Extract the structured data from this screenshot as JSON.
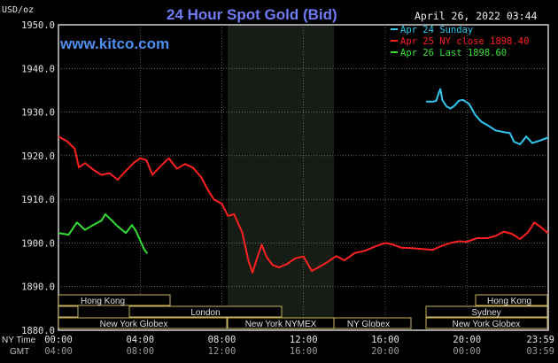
{
  "header": {
    "unit": "USD/oz",
    "title": "24 Hour Spot Gold (Bid)",
    "timestamp": "April 26, 2022 03:44",
    "website": "www.kitco.com"
  },
  "legend": [
    {
      "label": "Apr 24 Sunday",
      "color": "#2fc8f0"
    },
    {
      "label": "Apr 25 NY close 1898.40",
      "color": "#ff2020"
    },
    {
      "label": "Apr 26 Last 1898.60",
      "color": "#30e030"
    }
  ],
  "axis": {
    "y_ticks": [
      "1950.0",
      "1940.0",
      "1930.0",
      "1920.0",
      "1910.0",
      "1900.0",
      "1890.0",
      "1880.0"
    ],
    "x_ticks_ny": [
      "00:00",
      "04:00",
      "08:00",
      "12:00",
      "16:00",
      "20:00",
      "23:59"
    ],
    "x_ticks_gmt": [
      "04:00",
      "08:00",
      "12:00",
      "16:00",
      "20:00",
      "00:00",
      "03:59"
    ],
    "ny_time_label": "NY Time",
    "gmt_label": "GMT"
  },
  "sessions": {
    "hong_kong_1": "Hong Kong",
    "london": "London",
    "new_york_globex_1": "New York Globex",
    "new_york_nymex": "New York NYMEX",
    "ny_globex": "NY Globex",
    "hong_kong_2": "Hong Kong",
    "sydney": "Sydney",
    "new_york_globex_2": "New York Globex"
  },
  "chart_data": {
    "type": "line",
    "title": "24 Hour Spot Gold (Bid)",
    "ylabel": "USD/oz",
    "ylim": [
      1880,
      1950
    ],
    "xlim_hours": [
      0,
      23.98
    ],
    "grid": true,
    "legend_position": "top-right",
    "series": [
      {
        "name": "Apr 24 Sunday",
        "color": "#2fc8f0",
        "points": [
          [
            18.0,
            1932.4
          ],
          [
            18.35,
            1932.4
          ],
          [
            18.5,
            1932.6
          ],
          [
            18.6,
            1934.1
          ],
          [
            18.7,
            1935.3
          ],
          [
            18.8,
            1932.7
          ],
          [
            19.0,
            1931.3
          ],
          [
            19.2,
            1930.8
          ],
          [
            19.4,
            1931.5
          ],
          [
            19.6,
            1932.6
          ],
          [
            19.8,
            1932.8
          ],
          [
            20.1,
            1931.9
          ],
          [
            20.4,
            1929.4
          ],
          [
            20.7,
            1927.8
          ],
          [
            21.0,
            1927.0
          ],
          [
            21.4,
            1925.8
          ],
          [
            21.8,
            1925.4
          ],
          [
            22.1,
            1925.2
          ],
          [
            22.3,
            1923.2
          ],
          [
            22.6,
            1922.6
          ],
          [
            22.9,
            1924.4
          ],
          [
            23.2,
            1922.9
          ],
          [
            23.6,
            1923.5
          ],
          [
            23.98,
            1924.2
          ]
        ]
      },
      {
        "name": "Apr 25 NY close 1898.40",
        "color": "#ff2020",
        "points": [
          [
            0.0,
            1924.4
          ],
          [
            0.4,
            1923.4
          ],
          [
            0.8,
            1921.6
          ],
          [
            1.0,
            1917.3
          ],
          [
            1.3,
            1918.3
          ],
          [
            1.7,
            1916.8
          ],
          [
            2.1,
            1915.6
          ],
          [
            2.5,
            1916.0
          ],
          [
            2.9,
            1914.5
          ],
          [
            3.3,
            1916.5
          ],
          [
            3.7,
            1918.4
          ],
          [
            4.0,
            1919.4
          ],
          [
            4.3,
            1919.0
          ],
          [
            4.6,
            1915.6
          ],
          [
            5.0,
            1917.6
          ],
          [
            5.4,
            1919.4
          ],
          [
            5.8,
            1917.0
          ],
          [
            6.2,
            1918.1
          ],
          [
            6.6,
            1917.2
          ],
          [
            7.0,
            1915.0
          ],
          [
            7.3,
            1912.3
          ],
          [
            7.6,
            1910.0
          ],
          [
            8.0,
            1909.0
          ],
          [
            8.3,
            1906.2
          ],
          [
            8.6,
            1906.6
          ],
          [
            8.8,
            1904.5
          ],
          [
            9.0,
            1902.4
          ],
          [
            9.3,
            1895.9
          ],
          [
            9.5,
            1893.2
          ],
          [
            9.7,
            1896.2
          ],
          [
            9.95,
            1899.6
          ],
          [
            10.2,
            1896.7
          ],
          [
            10.5,
            1894.9
          ],
          [
            10.8,
            1894.4
          ],
          [
            11.2,
            1895.2
          ],
          [
            11.6,
            1896.5
          ],
          [
            12.0,
            1896.9
          ],
          [
            12.4,
            1893.6
          ],
          [
            12.8,
            1894.6
          ],
          [
            13.2,
            1895.7
          ],
          [
            13.6,
            1897.0
          ],
          [
            14.0,
            1896.0
          ],
          [
            14.5,
            1897.7
          ],
          [
            15.0,
            1898.2
          ],
          [
            15.5,
            1899.2
          ],
          [
            16.0,
            1900.0
          ],
          [
            16.4,
            1899.6
          ],
          [
            16.8,
            1898.9
          ],
          [
            17.3,
            1898.8
          ],
          [
            17.8,
            1898.6
          ],
          [
            18.3,
            1898.4
          ],
          [
            18.8,
            1899.4
          ],
          [
            19.2,
            1900.0
          ],
          [
            19.6,
            1900.4
          ],
          [
            20.0,
            1900.3
          ],
          [
            20.5,
            1901.1
          ],
          [
            21.0,
            1901.1
          ],
          [
            21.4,
            1901.6
          ],
          [
            21.8,
            1902.6
          ],
          [
            22.2,
            1902.1
          ],
          [
            22.6,
            1900.9
          ],
          [
            23.0,
            1902.5
          ],
          [
            23.3,
            1904.7
          ],
          [
            23.6,
            1903.7
          ],
          [
            23.98,
            1902.2
          ]
        ]
      },
      {
        "name": "Apr 26 Last 1898.60",
        "color": "#30e030",
        "points": [
          [
            0.0,
            1902.3
          ],
          [
            0.5,
            1901.9
          ],
          [
            0.9,
            1904.7
          ],
          [
            1.3,
            1903.0
          ],
          [
            1.7,
            1904.1
          ],
          [
            2.1,
            1905.1
          ],
          [
            2.3,
            1906.6
          ],
          [
            2.6,
            1905.2
          ],
          [
            2.9,
            1903.8
          ],
          [
            3.3,
            1902.3
          ],
          [
            3.6,
            1904.1
          ],
          [
            3.8,
            1902.7
          ],
          [
            4.0,
            1900.6
          ],
          [
            4.2,
            1898.5
          ],
          [
            4.35,
            1897.6
          ]
        ]
      }
    ]
  }
}
